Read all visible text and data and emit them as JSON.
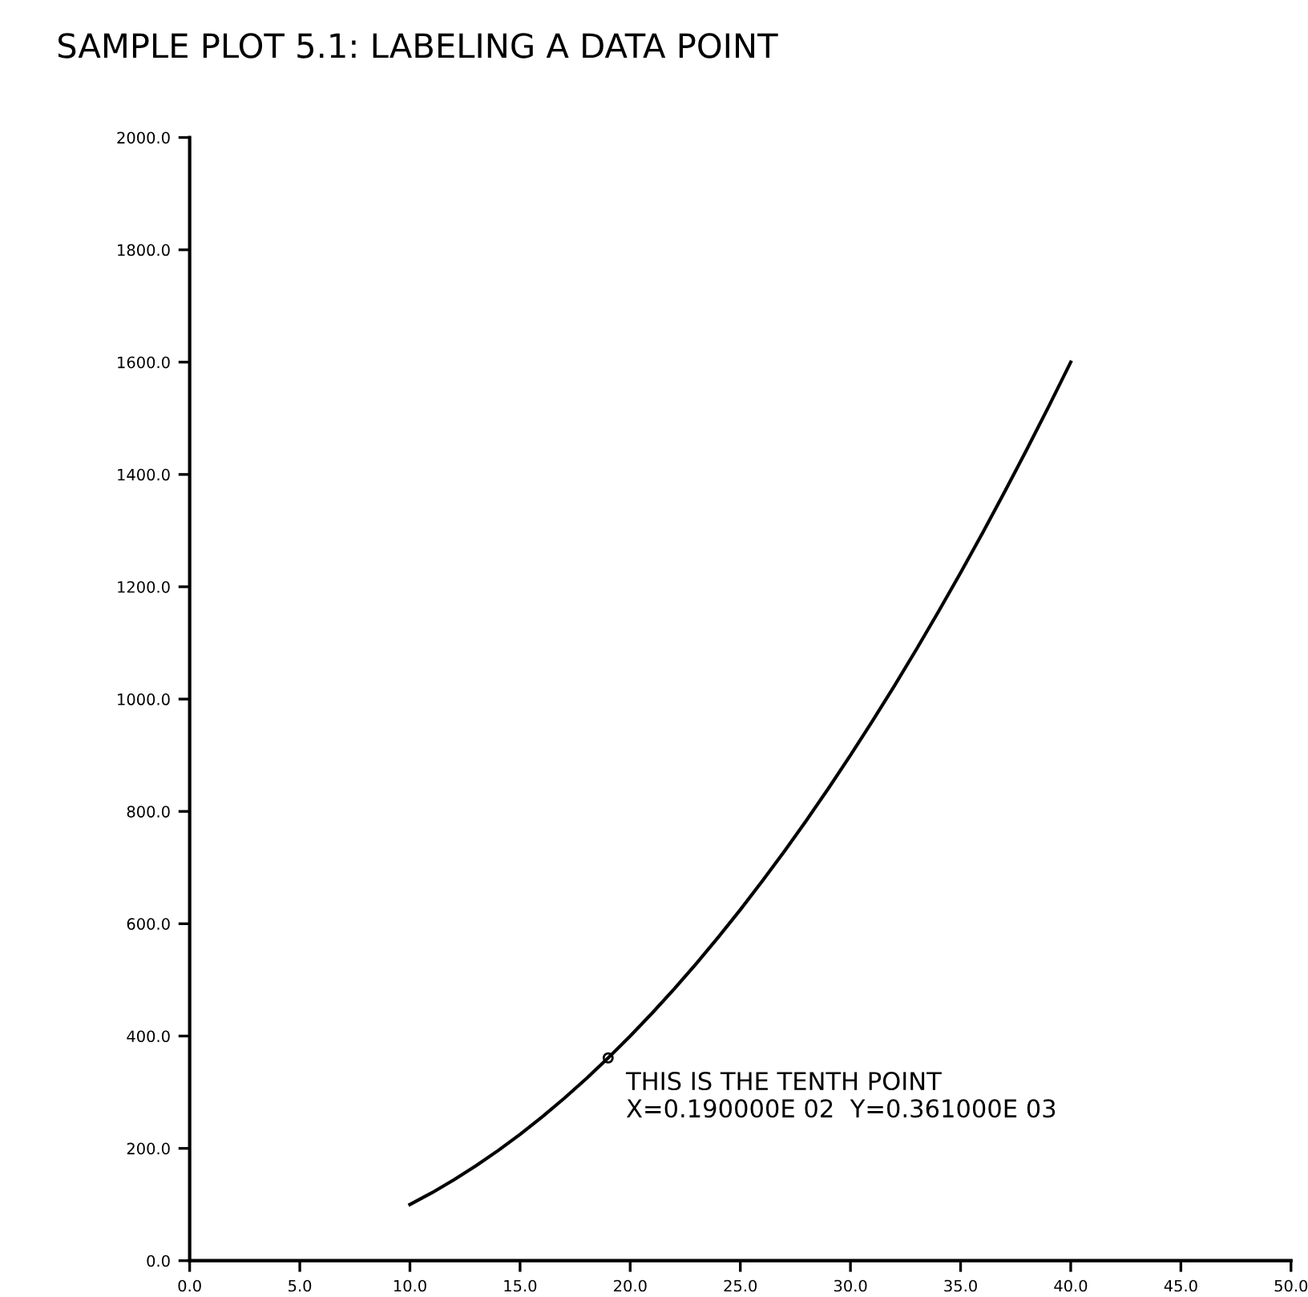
{
  "chart_data": {
    "type": "line",
    "title": "SAMPLE PLOT 5.1: LABELING A DATA POINT",
    "x": [
      10,
      11,
      12,
      13,
      14,
      15,
      16,
      17,
      18,
      19,
      20,
      21,
      22,
      23,
      24,
      25,
      26,
      27,
      28,
      29,
      30,
      31,
      32,
      33,
      34,
      35,
      36,
      37,
      38,
      39,
      40
    ],
    "series": [
      {
        "color": "#000000",
        "values": [
          100,
          121,
          144,
          169,
          196,
          225,
          256,
          289,
          324,
          361,
          400,
          441,
          484,
          529,
          576,
          625,
          676,
          729,
          784,
          841,
          900,
          961,
          1024,
          1089,
          1156,
          1225,
          1296,
          1369,
          1444,
          1521,
          1600
        ]
      }
    ],
    "annotations": [
      {
        "text": "THIS IS THE TENTH POINT\nX=0.190000E 02  Y=0.361000E 03",
        "x": 19,
        "y": 361
      }
    ],
    "xlim": [
      0,
      50
    ],
    "ylim": [
      0,
      2000
    ],
    "xticks": [
      {
        "value": 0,
        "label": "0.0"
      },
      {
        "value": 5,
        "label": "5.0"
      },
      {
        "value": 10,
        "label": "10.0"
      },
      {
        "value": 15,
        "label": "15.0"
      },
      {
        "value": 20,
        "label": "20.0"
      },
      {
        "value": 25,
        "label": "25.0"
      },
      {
        "value": 30,
        "label": "30.0"
      },
      {
        "value": 35,
        "label": "35.0"
      },
      {
        "value": 40,
        "label": "40.0"
      },
      {
        "value": 45,
        "label": "45.0"
      },
      {
        "value": 50,
        "label": "50.0"
      }
    ],
    "yticks": [
      {
        "value": 0,
        "label": "0.0"
      },
      {
        "value": 200,
        "label": "200.0"
      },
      {
        "value": 400,
        "label": "400.0"
      },
      {
        "value": 600,
        "label": "600.0"
      },
      {
        "value": 800,
        "label": "800.0"
      },
      {
        "value": 1000,
        "label": "1000.0"
      },
      {
        "value": 1200,
        "label": "1200.0"
      },
      {
        "value": 1400,
        "label": "1400.0"
      },
      {
        "value": 1600,
        "label": "1600.0"
      },
      {
        "value": 1800,
        "label": "1800.0"
      },
      {
        "value": 2000,
        "label": "2000.0"
      }
    ],
    "grid": false,
    "legend": false
  }
}
